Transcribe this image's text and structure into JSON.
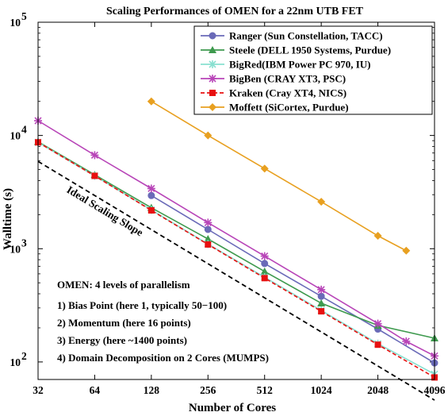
{
  "chart_data": {
    "type": "line",
    "title": "Scaling Performances of OMEN for a 22nm UTB FET",
    "xlabel": "Number of Cores",
    "ylabel": "Walltime (s)",
    "xscale": "log2",
    "yscale": "log10",
    "xlim": [
      32,
      4096
    ],
    "ylim": [
      70,
      100000
    ],
    "xticks": [
      "32",
      "64",
      "128",
      "256",
      "512",
      "1024",
      "2048",
      "4096"
    ],
    "yticks": [
      {
        "base": "10",
        "exp": "2",
        "value": 100
      },
      {
        "base": "10",
        "exp": "3",
        "value": 1000
      },
      {
        "base": "10",
        "exp": "4",
        "value": 10000
      },
      {
        "base": "10",
        "exp": "5",
        "value": 100000
      }
    ],
    "grid": false,
    "legend_position": "top-right",
    "series": [
      {
        "name": "Ranger (Sun Constellation, TACC)",
        "color": "#6a6ab8",
        "marker": "circle",
        "dash": "solid",
        "x": [
          128,
          256,
          512,
          1024,
          2048,
          4096
        ],
        "y": [
          2950,
          1480,
          740,
          380,
          195,
          98
        ]
      },
      {
        "name": "Steele (DELL 1950 Systems, Purdue)",
        "color": "#3e9a4e",
        "marker": "triangle",
        "dash": "solid",
        "x": [
          32,
          64,
          128,
          256,
          512,
          1024,
          2048,
          4096
        ],
        "y": [
          8800,
          4500,
          2300,
          1220,
          630,
          330,
          210,
          162
        ]
      },
      {
        "name": "BigRed(IBM Power PC 970, IU)",
        "color": "#88e0d0",
        "marker": "x",
        "dash": "solid",
        "x": [
          32,
          64,
          128,
          256,
          512,
          1024,
          2048,
          4096
        ],
        "y": [
          8700,
          4400,
          2200,
          1100,
          560,
          285,
          145,
          78
        ]
      },
      {
        "name": "BigBen (CRAY XT3, PSC)",
        "color": "#b845b8",
        "marker": "star",
        "dash": "solid",
        "x": [
          32,
          64,
          128,
          256,
          512,
          1024,
          2048,
          2896,
          4096
        ],
        "y": [
          13500,
          6700,
          3400,
          1700,
          860,
          435,
          218,
          152,
          113
        ]
      },
      {
        "name": "Kraken (Cray XT4, NICS)",
        "color": "#e81010",
        "marker": "square",
        "dash": "dashed",
        "x": [
          32,
          64,
          128,
          256,
          512,
          1024,
          2048,
          4096
        ],
        "y": [
          8700,
          4400,
          2180,
          1090,
          550,
          280,
          142,
          73
        ]
      },
      {
        "name": "Moffett (SiCortex, Purdue)",
        "color": "#e8a020",
        "marker": "diamond",
        "dash": "solid",
        "x": [
          128,
          256,
          512,
          1024,
          2048,
          2896
        ],
        "y": [
          20000,
          10000,
          5100,
          2600,
          1300,
          960
        ]
      }
    ],
    "ideal_line": {
      "label": "Ideal Scaling Slope",
      "color": "#000000",
      "dash": "dashed",
      "x": [
        32,
        4096
      ],
      "y": [
        5900,
        46
      ]
    },
    "annotation": {
      "title": "OMEN: 4 levels of parallelism",
      "lines": [
        "1) Bias Point (here 1, typically 50−100)",
        "2) Momentum (here 16 points)",
        "3) Energy (here ~1400 points)",
        "4) Domain Decomposition on 2 Cores (MUMPS)"
      ]
    }
  }
}
